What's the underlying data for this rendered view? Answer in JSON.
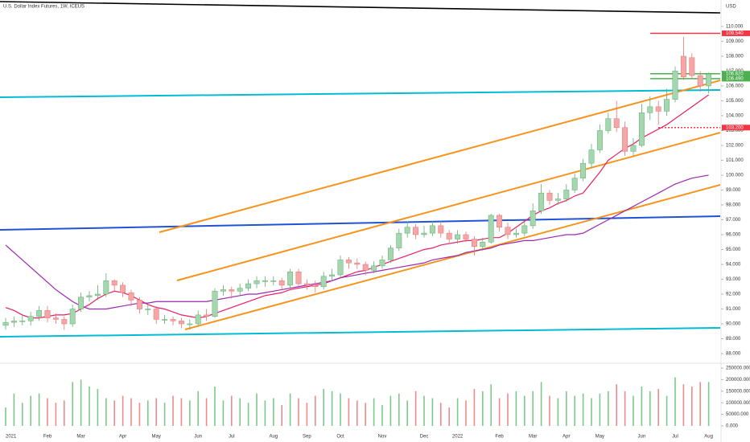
{
  "chart_data": {
    "type": "candlestick",
    "title": "U.S. Dollar Index Futures, 1W, ICEUS",
    "currency": "USD",
    "categories": [
      "2021",
      null,
      null,
      null,
      null,
      "Feb",
      null,
      null,
      null,
      "Mar",
      null,
      null,
      null,
      null,
      "Apr",
      null,
      null,
      null,
      "May",
      null,
      null,
      null,
      null,
      "Jun",
      null,
      null,
      null,
      "Jul",
      null,
      null,
      null,
      null,
      "Aug",
      null,
      null,
      null,
      "Sep",
      null,
      null,
      null,
      "Oct",
      null,
      null,
      null,
      null,
      "Nov",
      null,
      null,
      null,
      null,
      "Dec",
      null,
      null,
      null,
      "2022",
      null,
      null,
      null,
      null,
      "Feb",
      null,
      null,
      null,
      "Mar",
      null,
      null,
      null,
      "Apr",
      null,
      null,
      null,
      "May",
      null,
      null,
      null,
      null,
      "Jun",
      null,
      null,
      null,
      "Jul",
      null,
      null,
      null,
      "Aug"
    ],
    "open": [
      89.9,
      90.1,
      90.2,
      90.2,
      90.5,
      90.9,
      90.4,
      90.3,
      90.0,
      91.0,
      91.8,
      91.9,
      92.0,
      92.9,
      92.6,
      92.1,
      91.6,
      91.0,
      91.0,
      90.3,
      90.3,
      90.2,
      90.0,
      90.0,
      90.6,
      90.5,
      92.2,
      92.3,
      92.2,
      92.4,
      92.7,
      92.9,
      92.9,
      92.9,
      92.6,
      93.5,
      92.7,
      92.6,
      92.5,
      93.2,
      93.3,
      94.3,
      94.1,
      94.0,
      93.6,
      93.9,
      94.3,
      95.1,
      96.1,
      96.5,
      96.0,
      96.1,
      96.6,
      96.1,
      95.7,
      96.0,
      95.7,
      95.2,
      95.5,
      97.3,
      96.5,
      96.0,
      96.1,
      96.6,
      97.6,
      98.8,
      98.3,
      98.4,
      99.0,
      99.8,
      100.8,
      101.7,
      103.0,
      103.8,
      103.2,
      101.6,
      102.0,
      104.2,
      104.6,
      104.3,
      105.1,
      108.0,
      107.9,
      106.7,
      106.0
    ],
    "high": [
      90.4,
      90.5,
      90.6,
      90.8,
      91.2,
      91.2,
      90.7,
      90.5,
      91.3,
      92.1,
      92.2,
      92.6,
      93.4,
      93.0,
      92.8,
      92.3,
      91.8,
      91.3,
      91.2,
      90.6,
      90.5,
      90.4,
      90.3,
      90.9,
      91.0,
      92.4,
      92.6,
      92.5,
      92.7,
      93.0,
      93.2,
      93.2,
      93.2,
      93.1,
      93.7,
      93.7,
      93.0,
      92.9,
      93.5,
      93.7,
      94.6,
      94.5,
      94.4,
      94.2,
      94.2,
      94.6,
      95.3,
      96.4,
      96.9,
      96.7,
      96.6,
      96.9,
      96.9,
      96.3,
      96.3,
      96.2,
      95.9,
      95.8,
      97.4,
      97.4,
      96.8,
      96.4,
      96.9,
      98.1,
      99.4,
      99.0,
      98.8,
      99.4,
      100.1,
      101.1,
      102.1,
      103.4,
      104.2,
      105.0,
      103.6,
      102.5,
      104.8,
      105.3,
      105.0,
      105.8,
      107.3,
      109.3,
      108.2,
      107.0,
      106.9
    ],
    "low": [
      89.6,
      89.8,
      89.9,
      89.9,
      90.2,
      90.1,
      90.0,
      89.6,
      89.8,
      90.8,
      91.5,
      91.6,
      91.8,
      92.2,
      91.8,
      91.2,
      90.7,
      90.6,
      90.0,
      90.0,
      89.9,
      89.7,
      89.6,
      89.8,
      90.2,
      90.4,
      91.9,
      91.7,
      91.9,
      92.2,
      92.4,
      92.5,
      92.6,
      92.3,
      92.4,
      92.5,
      92.3,
      92.1,
      92.3,
      92.9,
      93.1,
      93.7,
      93.7,
      93.3,
      93.4,
      93.7,
      94.1,
      94.9,
      95.8,
      95.7,
      95.8,
      95.9,
      95.8,
      95.4,
      95.4,
      95.5,
      94.6,
      94.9,
      95.4,
      96.2,
      95.7,
      95.8,
      95.9,
      96.4,
      97.4,
      98.0,
      98.0,
      98.2,
      98.8,
      99.6,
      100.5,
      101.5,
      102.8,
      102.9,
      101.3,
      101.3,
      101.9,
      103.7,
      103.4,
      104.0,
      104.9,
      106.4,
      106.5,
      105.6,
      105.5
    ],
    "close": [
      90.1,
      90.2,
      90.2,
      90.5,
      90.9,
      90.4,
      90.3,
      90.0,
      91.0,
      91.8,
      91.9,
      92.0,
      92.9,
      92.6,
      92.1,
      91.6,
      91.0,
      91.0,
      90.3,
      90.3,
      90.2,
      90.0,
      90.0,
      90.6,
      90.5,
      92.2,
      92.3,
      92.2,
      92.4,
      92.7,
      92.9,
      92.9,
      92.9,
      92.6,
      93.5,
      92.7,
      92.6,
      92.5,
      93.2,
      93.3,
      94.3,
      94.1,
      94.0,
      93.6,
      93.9,
      94.3,
      95.1,
      96.1,
      96.5,
      96.0,
      96.1,
      96.6,
      96.1,
      95.7,
      96.0,
      95.7,
      95.2,
      95.5,
      97.3,
      96.5,
      96.0,
      96.1,
      96.6,
      97.6,
      98.8,
      98.3,
      98.4,
      99.0,
      99.8,
      100.8,
      101.7,
      103.0,
      103.8,
      103.2,
      101.6,
      102.0,
      104.2,
      104.6,
      104.3,
      105.1,
      107.0,
      106.6,
      106.7,
      106.0,
      106.8
    ],
    "up_color": "#a5d6b0",
    "down_color": "#f5a6a6",
    "ylim": [
      87.46,
      111.78
    ],
    "yticks": [
      {
        "value": 88,
        "label": "88.000"
      },
      {
        "value": 89,
        "label": "89.000"
      },
      {
        "value": 90,
        "label": "90.000"
      },
      {
        "value": 91,
        "label": "91.000"
      },
      {
        "value": 92,
        "label": "92.000"
      },
      {
        "value": 93,
        "label": "93.000"
      },
      {
        "value": 94,
        "label": "94.000"
      },
      {
        "value": 95,
        "label": "95.000"
      },
      {
        "value": 96,
        "label": "96.000"
      },
      {
        "value": 97,
        "label": "97.000"
      },
      {
        "value": 98,
        "label": "98.000"
      },
      {
        "value": 99,
        "label": "99.000"
      },
      {
        "value": 100,
        "label": "100.000"
      },
      {
        "value": 101,
        "label": "101.000"
      },
      {
        "value": 102,
        "label": "102.000"
      },
      {
        "value": 103,
        "label": "103.000"
      },
      {
        "value": 104,
        "label": "104.000"
      },
      {
        "value": 105,
        "label": "105.000"
      },
      {
        "value": 106,
        "label": "106.000"
      },
      {
        "value": 107,
        "label": "107.000"
      },
      {
        "value": 108,
        "label": "108.000"
      },
      {
        "value": 109,
        "label": "109.000"
      },
      {
        "value": 110,
        "label": "110.000"
      }
    ],
    "overlays": [
      {
        "color": "#e91e63",
        "values": [
          91.1,
          90.9,
          90.6,
          90.4,
          90.4,
          90.5,
          90.6,
          90.6,
          90.7,
          91.0,
          91.3,
          91.7,
          92.0,
          92.2,
          92.1,
          91.9,
          91.6,
          91.3,
          91.1,
          91.0,
          90.8,
          90.6,
          90.5,
          90.4,
          90.5,
          90.7,
          90.9,
          91.1,
          91.3,
          91.5,
          91.7,
          91.9,
          92.0,
          92.1,
          92.3,
          92.4,
          92.5,
          92.6,
          92.7,
          92.9,
          93.1,
          93.3,
          93.5,
          93.6,
          93.8,
          94.0,
          94.2,
          94.4,
          94.6,
          94.8,
          95.0,
          95.1,
          95.3,
          95.4,
          95.5,
          95.6,
          95.6,
          95.7,
          95.8,
          95.8,
          96.1,
          96.5,
          96.9,
          97.3,
          97.6,
          97.8,
          98.1,
          98.3,
          98.6,
          98.8,
          99.5,
          100.2,
          101.0,
          101.4,
          101.8,
          102.1,
          102.5,
          102.8,
          103.1,
          103.4,
          103.8,
          104.2,
          104.6,
          105.0,
          105.4
        ]
      },
      {
        "color": "#9c27b0",
        "values": [
          95.3,
          94.8,
          94.3,
          93.8,
          93.3,
          92.8,
          92.3,
          91.9,
          91.5,
          91.2,
          91.0,
          91.0,
          91.0,
          91.1,
          91.2,
          91.3,
          91.4,
          91.4,
          91.5,
          91.5,
          91.5,
          91.5,
          91.5,
          91.5,
          91.5,
          91.6,
          91.7,
          91.8,
          91.9,
          92.0,
          92.0,
          92.1,
          92.2,
          92.3,
          92.4,
          92.5,
          92.6,
          92.7,
          92.8,
          92.9,
          93.1,
          93.2,
          93.3,
          93.4,
          93.5,
          93.6,
          93.7,
          93.8,
          93.9,
          94.0,
          94.1,
          94.3,
          94.4,
          94.5,
          94.6,
          94.8,
          94.9,
          95.0,
          95.1,
          95.3,
          95.4,
          95.5,
          95.6,
          95.6,
          95.7,
          95.8,
          95.9,
          96.0,
          96.0,
          96.1,
          96.4,
          96.7,
          97.0,
          97.3,
          97.6,
          97.9,
          98.2,
          98.5,
          98.8,
          99.1,
          99.4,
          99.6,
          99.8,
          99.9,
          100.0
        ]
      }
    ],
    "levels": [
      {
        "value": 109.54,
        "label": "109.540",
        "color": "#f23645",
        "dashed": false
      },
      {
        "value": 106.82,
        "label": "106.820",
        "color": "#4caf50",
        "dashed": false
      },
      {
        "value": 106.49,
        "label": "106.490",
        "color": "#4caf50",
        "dashed": false
      },
      {
        "value": 103.2,
        "label": "103.200",
        "color": "#f23645",
        "dashed": true
      }
    ],
    "volume": {
      "values": [
        80000,
        140000,
        100000,
        130000,
        140000,
        120000,
        100000,
        110000,
        190000,
        200000,
        170000,
        160000,
        120000,
        110000,
        130000,
        120000,
        100000,
        110000,
        120000,
        100000,
        130000,
        120000,
        110000,
        150000,
        120000,
        170000,
        110000,
        130000,
        120000,
        100000,
        140000,
        110000,
        120000,
        90000,
        140000,
        120000,
        100000,
        130000,
        160000,
        150000,
        140000,
        120000,
        110000,
        100000,
        120000,
        90000,
        130000,
        140000,
        110000,
        150000,
        130000,
        120000,
        100000,
        80000,
        120000,
        110000,
        160000,
        150000,
        180000,
        120000,
        140000,
        150000,
        130000,
        150000,
        190000,
        130000,
        120000,
        150000,
        130000,
        140000,
        120000,
        140000,
        150000,
        180000,
        150000,
        130000,
        170000,
        150000,
        160000,
        130000,
        210000,
        180000,
        170000,
        190000,
        190000
      ],
      "ylim": [
        -17360,
        260400
      ],
      "yticks": [
        {
          "value": 0,
          "label": "0.000"
        },
        {
          "value": 50000,
          "label": "50000.000"
        },
        {
          "value": 100000,
          "label": "100000.000"
        },
        {
          "value": 150000,
          "label": "150000.000"
        },
        {
          "value": 200000,
          "label": "200000.000"
        },
        {
          "value": 250000,
          "label": "250000.000"
        }
      ]
    }
  }
}
